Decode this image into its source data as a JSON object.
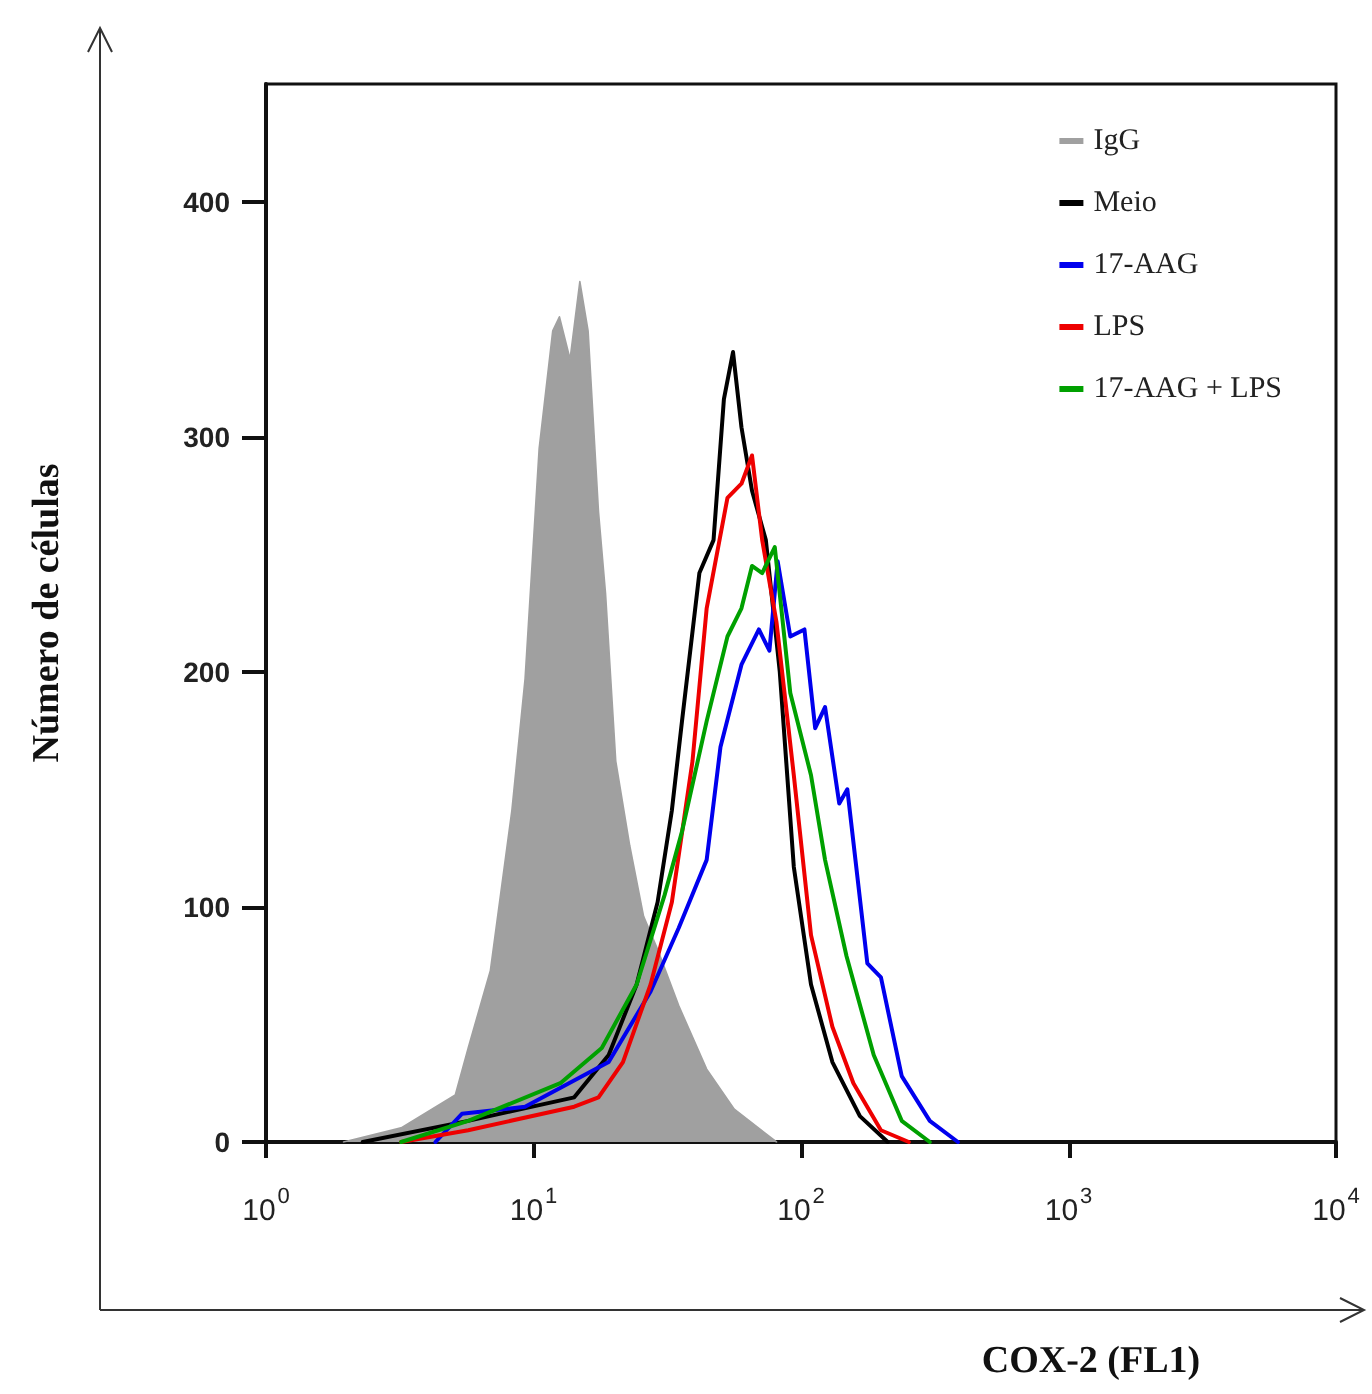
{
  "chart_data": {
    "type": "line",
    "xlabel": "COX-2 (FL1)",
    "ylabel": "Número de células",
    "log": "x",
    "xlim": [
      1,
      10000
    ],
    "xticks": [
      {
        "value": 1,
        "label": "10$^{0}$"
      },
      {
        "value": 10,
        "label": "10$^{1}$"
      },
      {
        "value": 100,
        "label": "10$^{2}$"
      },
      {
        "value": 1000,
        "label": "10$^{3}$"
      },
      {
        "value": 10000,
        "label": "10$^{4}$"
      }
    ],
    "ylim": [
      0,
      450
    ],
    "yticks": [
      0,
      100,
      200,
      300,
      400
    ],
    "grid": false,
    "legend": "top right",
    "marker": "none",
    "line_style": "solid",
    "series": [
      {
        "name": "IgG",
        "type": "area",
        "color": "#a0a0a0",
        "x": [
          1.95,
          3.2,
          5.1,
          5.7,
          6.9,
          8.3,
          9.3,
          10.5,
          11.8,
          12.5,
          13.7,
          14.9,
          16,
          17.5,
          18.6,
          20.3,
          22.9,
          25.8,
          29.1,
          34.9,
          44.4,
          56.3,
          81
        ],
        "values": [
          0,
          6,
          20,
          40,
          73,
          141,
          197,
          295,
          345,
          351,
          333,
          366,
          345,
          268,
          233,
          162,
          126,
          96,
          82,
          58,
          31,
          14,
          0
        ]
      },
      {
        "name": "Meio",
        "color": "#000000",
        "x": [
          2.3,
          5.7,
          14.2,
          19.1,
          24.3,
          29.1,
          32.9,
          35.9,
          41.7,
          47.1,
          51.5,
          55.7,
          59.9,
          65.6,
          73.9,
          83.3,
          94,
          109,
          131,
          166,
          211
        ],
        "values": [
          0,
          9,
          19,
          37,
          67,
          102,
          141,
          179,
          242,
          256,
          316,
          336,
          304,
          277,
          256,
          200,
          117,
          67,
          34,
          11,
          0
        ]
      },
      {
        "name": "17-AAG",
        "color": "#0000ee",
        "x": [
          4.3,
          5.4,
          9.3,
          19.1,
          27.4,
          34.9,
          44.4,
          50,
          59.9,
          69.6,
          76.2,
          81.8,
          91.2,
          103,
          113,
          123,
          139,
          149,
          177,
          199,
          238,
          303,
          386
        ],
        "values": [
          0,
          12,
          15,
          34,
          64,
          91,
          120,
          168,
          203,
          218,
          209,
          247,
          215,
          218,
          176,
          185,
          144,
          150,
          76,
          70,
          28,
          9,
          0
        ]
      },
      {
        "name": "LPS",
        "color": "#ee0000",
        "x": [
          3.2,
          5.7,
          14.2,
          17.5,
          21.6,
          27.4,
          32.9,
          39.3,
          44.4,
          53.1,
          59.9,
          65.6,
          71.6,
          81,
          94,
          109,
          131,
          157,
          199,
          253
        ],
        "values": [
          0,
          5,
          15,
          19,
          34,
          67,
          102,
          162,
          227,
          274,
          280,
          292,
          256,
          221,
          156,
          88,
          49,
          25,
          5,
          0
        ]
      },
      {
        "name": "17-AAG + LPS",
        "color": "#00a000",
        "x": [
          3.2,
          5.7,
          12.6,
          18,
          24.3,
          30.9,
          35.9,
          44.4,
          53.1,
          59.9,
          65.6,
          71.6,
          79.8,
          91.2,
          109,
          123,
          148,
          187,
          238,
          303
        ],
        "values": [
          0,
          9,
          25,
          40,
          67,
          105,
          132,
          179,
          215,
          227,
          245,
          242,
          253,
          191,
          156,
          120,
          79,
          37,
          9,
          0
        ]
      }
    ]
  }
}
